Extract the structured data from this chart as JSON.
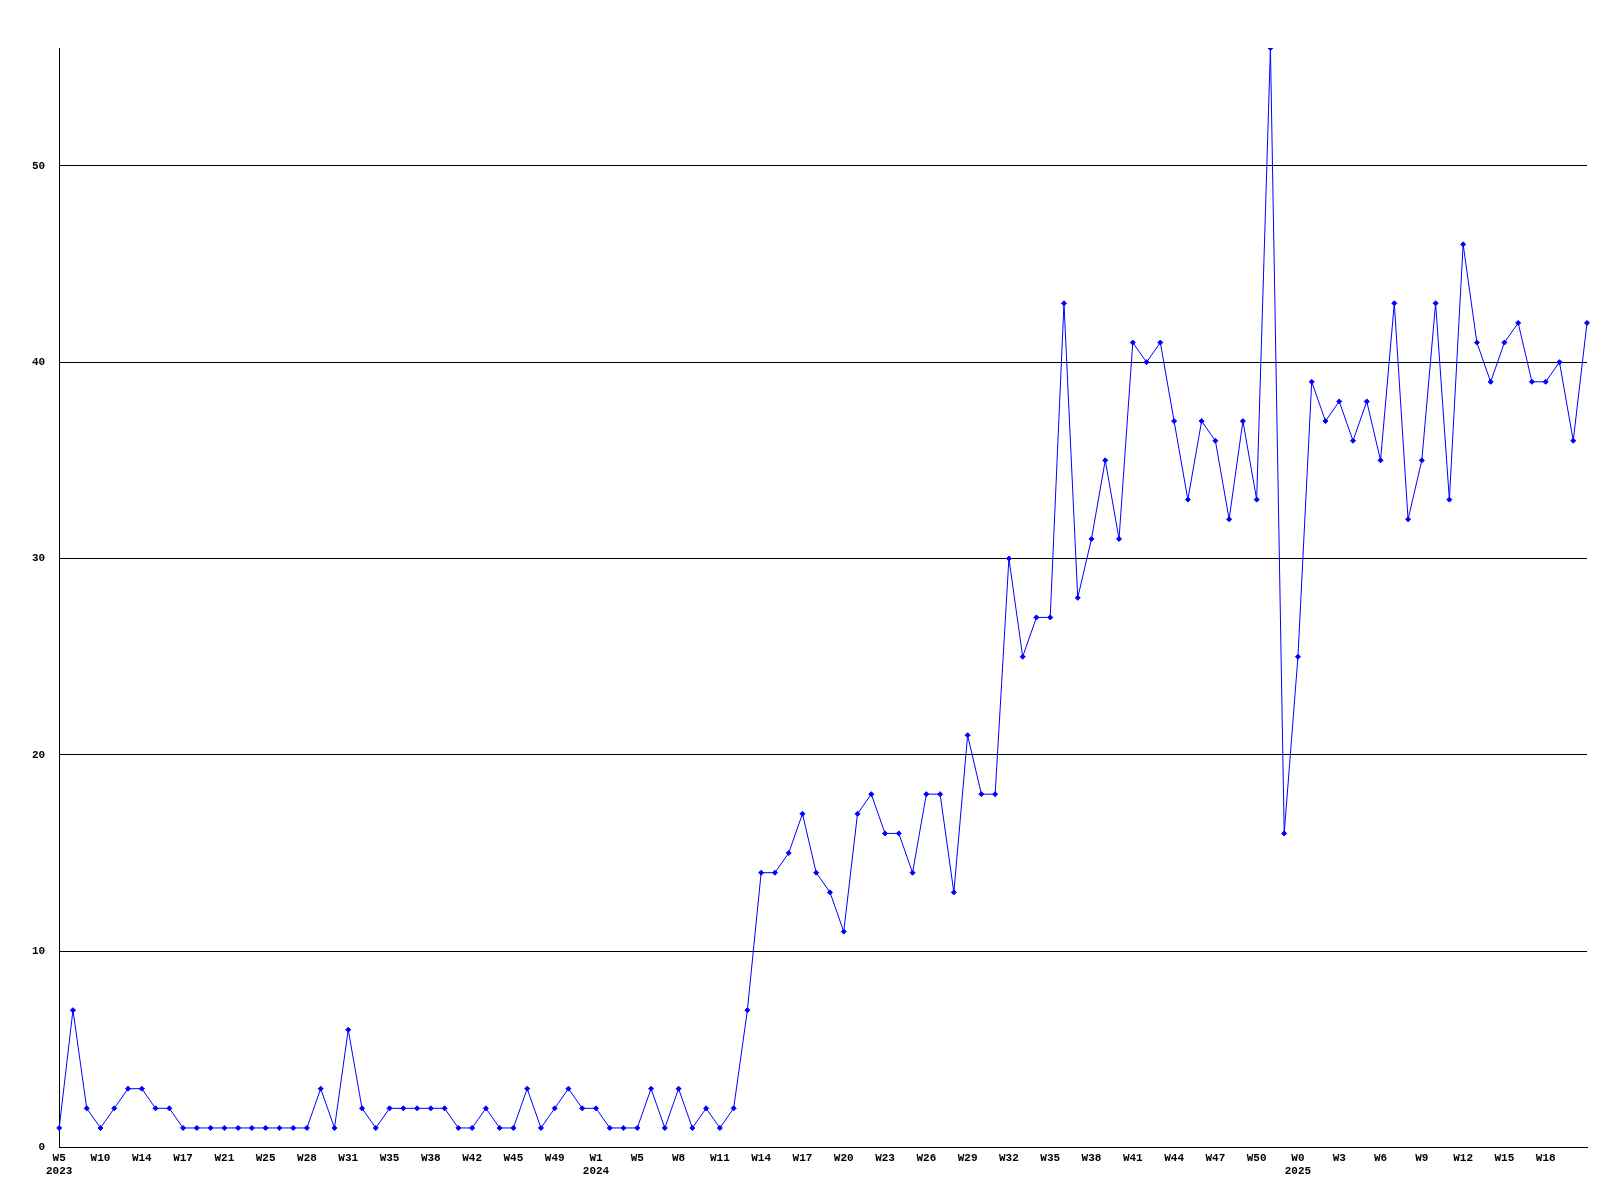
{
  "chart_data": {
    "type": "line",
    "categories": [
      "W5\n2023",
      null,
      null,
      "W10",
      null,
      null,
      "W14",
      null,
      null,
      "W17",
      null,
      null,
      "W21",
      null,
      null,
      "W25",
      null,
      null,
      "W28",
      null,
      null,
      "W31",
      null,
      null,
      "W35",
      null,
      null,
      "W38",
      null,
      null,
      "W42",
      null,
      null,
      "W45",
      null,
      null,
      "W49",
      null,
      null,
      "W1\n2024",
      null,
      null,
      "W5",
      null,
      null,
      "W8",
      null,
      null,
      "W11",
      null,
      null,
      "W14",
      null,
      null,
      "W17",
      null,
      null,
      "W20",
      null,
      null,
      "W23",
      null,
      null,
      "W26",
      null,
      null,
      "W29",
      null,
      null,
      "W32",
      null,
      null,
      "W35",
      null,
      null,
      "W38",
      null,
      null,
      "W41",
      null,
      null,
      "W44",
      null,
      null,
      "W47",
      null,
      null,
      "W50",
      null,
      null,
      "W0\n2025",
      null,
      null,
      "W3",
      null,
      null,
      "W6",
      null,
      null,
      "W9",
      null,
      null,
      "W12",
      null,
      null,
      "W15",
      null,
      null,
      "W18",
      null,
      null,
      null
    ],
    "series": [
      {
        "color": "#0000ff",
        "values": [
          1,
          7,
          2,
          1,
          2,
          3,
          3,
          2,
          2,
          1,
          1,
          1,
          1,
          1,
          1,
          1,
          1,
          1,
          1,
          3,
          1,
          6,
          2,
          1,
          2,
          2,
          2,
          2,
          2,
          1,
          1,
          2,
          1,
          1,
          3,
          1,
          2,
          3,
          2,
          2,
          1,
          1,
          1,
          3,
          1,
          3,
          1,
          2,
          1,
          2,
          7,
          14,
          14,
          15,
          17,
          14,
          13,
          11,
          17,
          18,
          16,
          16,
          14,
          18,
          18,
          13,
          21,
          18,
          18,
          30,
          25,
          27,
          27,
          43,
          28,
          31,
          35,
          31,
          41,
          40,
          41,
          37,
          33,
          37,
          36,
          32,
          37,
          33,
          56,
          16,
          25,
          39,
          37,
          38,
          36,
          38,
          35,
          43,
          32,
          35,
          43,
          33,
          46,
          41,
          39,
          41,
          42,
          39,
          39,
          40,
          36,
          42
        ]
      }
    ],
    "ylim": [
      0,
      56
    ],
    "yticks": [
      0,
      10,
      20,
      30,
      40,
      50
    ],
    "grid": "y",
    "marker": "diamond",
    "legend": false
  }
}
